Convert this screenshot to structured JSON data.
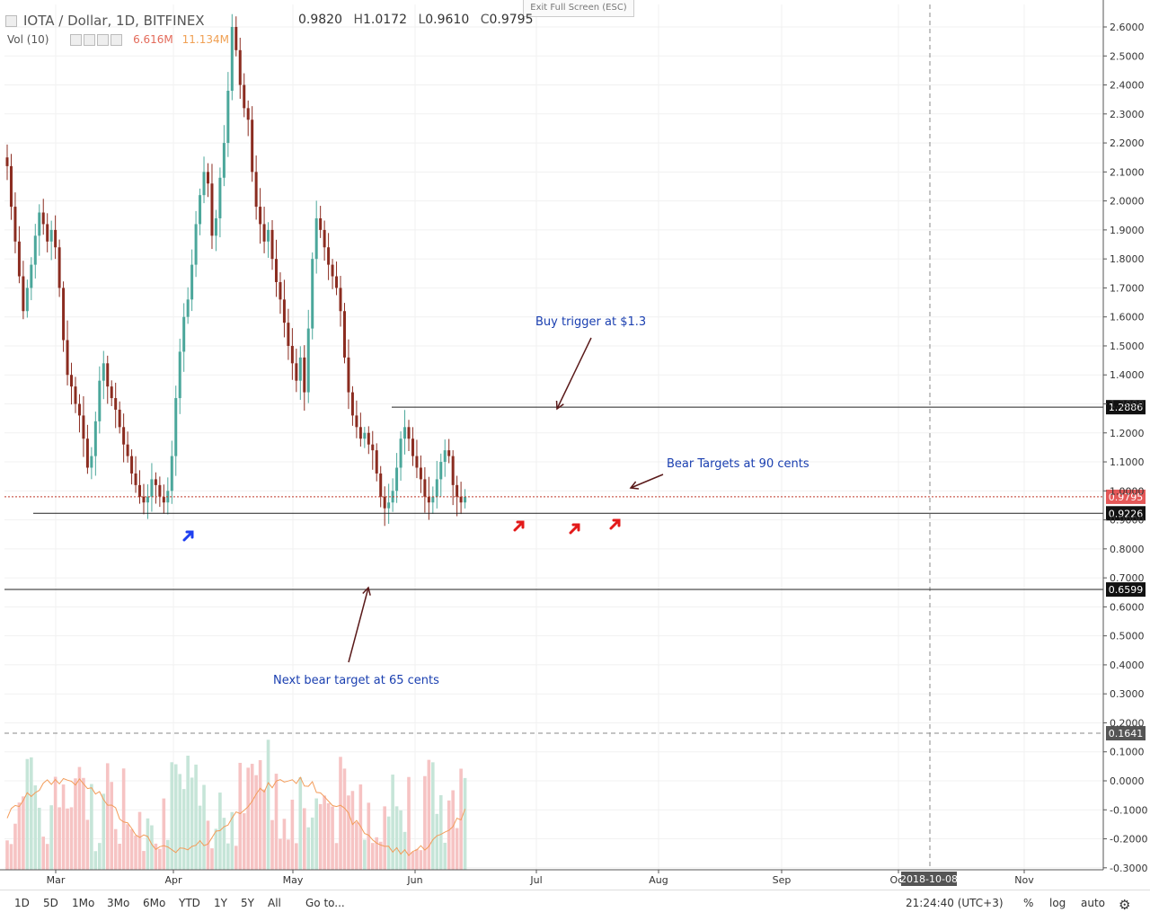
{
  "header": {
    "symbol": "IOTA / Dollar, 1D, BITFINEX",
    "ohlc": [
      {
        "k": "O",
        "v": "0.9820"
      },
      {
        "k": "H",
        "v": "1.0172"
      },
      {
        "k": "L",
        "v": "0.9610"
      },
      {
        "k": "C",
        "v": "0.9795"
      }
    ],
    "vol_label": "Vol (10)",
    "vol_value_1": "6.616M",
    "vol_value_2": "11.134M",
    "exit_fullscreen": "Exit Full Screen (ESC)"
  },
  "toolbar": {
    "ranges": [
      "1D",
      "5D",
      "1Mo",
      "3Mo",
      "6Mo",
      "YTD",
      "1Y",
      "5Y",
      "All"
    ],
    "goto": "Go to...",
    "clock": "21:24:40 (UTC+3)",
    "percent": "%",
    "log": "log",
    "auto": "auto"
  },
  "colors": {
    "up": "#4ba79b",
    "down": "#8b2c20",
    "vol_up": "#c6e5d8",
    "vol_down": "#f6c3c3",
    "ma_line": "#f39c5a",
    "annotation": "#1a3fb0",
    "arrow_line": "#5a1a1a"
  },
  "chart_data": {
    "type": "candlestick",
    "title": "IOTA / Dollar, 1D, BITFINEX",
    "x_ticks": [
      "Mar",
      "Apr",
      "May",
      "Jun",
      "Jul",
      "Aug",
      "Sep",
      "Oct",
      "Nov"
    ],
    "cursor_date": "2018-10-08",
    "y_ticks": [
      "2.6000",
      "2.5000",
      "2.4000",
      "2.3000",
      "2.2000",
      "2.1000",
      "2.0000",
      "1.9000",
      "1.8000",
      "1.7000",
      "1.6000",
      "1.5000",
      "1.4000",
      "1.3000",
      "1.2000",
      "1.1000",
      "1.0000",
      "0.9000",
      "0.8000",
      "0.7000",
      "0.6000",
      "0.5000",
      "0.4000",
      "0.3000",
      "0.2000",
      "0.1000",
      "0.0000",
      "-0.1000",
      "-0.2000",
      "-0.3000"
    ],
    "y_range": [
      -0.3,
      2.65
    ],
    "closes": [
      2.12,
      1.98,
      1.86,
      1.74,
      1.62,
      1.7,
      1.78,
      1.88,
      1.96,
      1.92,
      1.86,
      1.9,
      1.84,
      1.7,
      1.52,
      1.4,
      1.36,
      1.3,
      1.26,
      1.18,
      1.08,
      1.12,
      1.24,
      1.38,
      1.44,
      1.36,
      1.32,
      1.28,
      1.22,
      1.16,
      1.12,
      1.06,
      1.02,
      0.98,
      0.96,
      0.98,
      1.04,
      1.02,
      0.98,
      0.96,
      1.0,
      1.12,
      1.32,
      1.48,
      1.6,
      1.66,
      1.78,
      1.92,
      2.02,
      2.1,
      2.06,
      1.88,
      1.94,
      2.08,
      2.2,
      2.38,
      2.6,
      2.52,
      2.4,
      2.32,
      2.28,
      2.1,
      1.98,
      1.92,
      1.86,
      1.9,
      1.8,
      1.72,
      1.66,
      1.58,
      1.5,
      1.44,
      1.38,
      1.46,
      1.34,
      1.56,
      1.8,
      1.94,
      1.9,
      1.84,
      1.78,
      1.74,
      1.7,
      1.62,
      1.46,
      1.34,
      1.26,
      1.22,
      1.18,
      1.2,
      1.16,
      1.14,
      1.06,
      0.98,
      0.94,
      0.96,
      1.0,
      1.08,
      1.18,
      1.22,
      1.18,
      1.12,
      1.08,
      1.04,
      0.98,
      0.96,
      0.98,
      1.04,
      1.1,
      1.14,
      1.12,
      1.02,
      0.98,
      0.96,
      0.9795
    ],
    "levels": [
      {
        "label": "1.2886",
        "value": 1.2886
      },
      {
        "label": "0.9795",
        "value": 0.9795,
        "style": "dotted"
      },
      {
        "label": "0.9226",
        "value": 0.9226
      },
      {
        "label": "0.6599",
        "value": 0.6599
      },
      {
        "label": "0.1641",
        "value": 0.1641,
        "style": "crosshair"
      }
    ],
    "annotations": [
      {
        "text": "Buy trigger at $1.3"
      },
      {
        "text": "Bear Targets at 90 cents"
      },
      {
        "text": "Next bear target at 65 cents"
      }
    ],
    "volume_ma_label": "Vol (10)"
  }
}
